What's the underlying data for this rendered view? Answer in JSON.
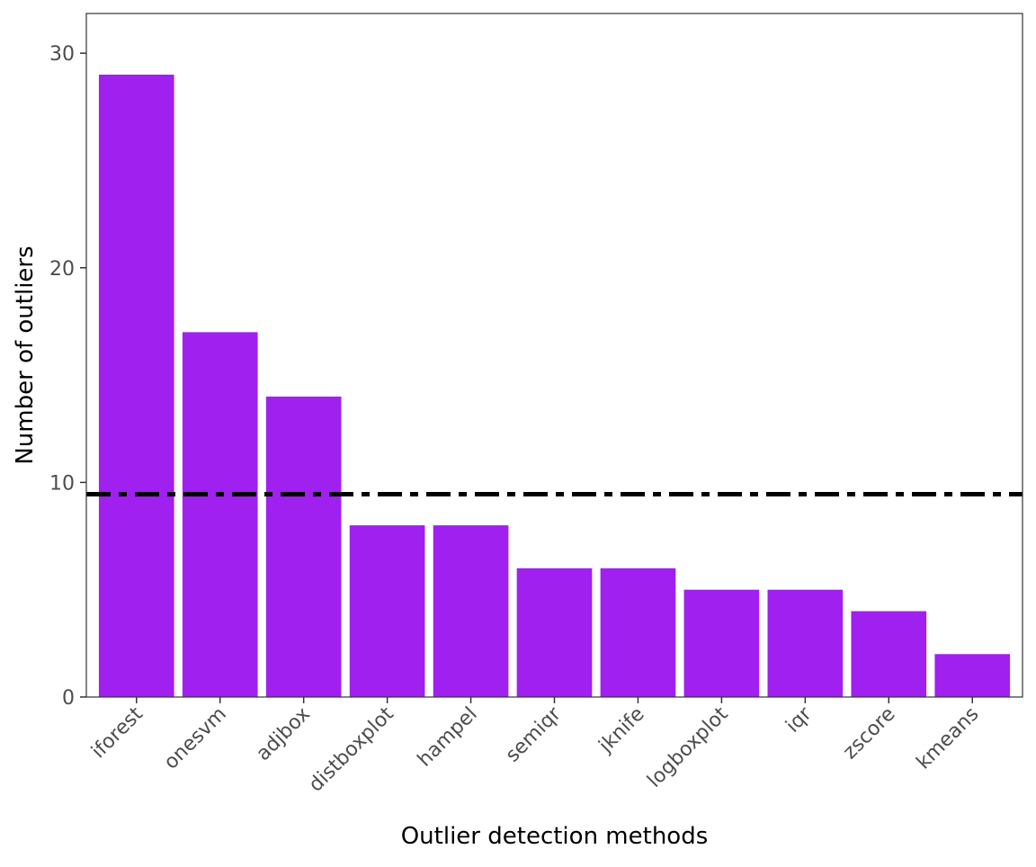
{
  "chart_data": {
    "type": "bar",
    "title": "",
    "xlabel": "Outlier detection methods",
    "ylabel": "Number of outliers",
    "categories": [
      "iforest",
      "onesvm",
      "adjbox",
      "distboxplot",
      "hampel",
      "semiqr",
      "jknife",
      "logboxplot",
      "iqr",
      "zscore",
      "kmeans"
    ],
    "values": [
      29,
      17,
      14,
      8,
      8,
      6,
      6,
      5,
      5,
      4,
      2
    ],
    "ylim": [
      0,
      31.85
    ],
    "yticks": [
      0,
      10,
      20,
      30
    ],
    "reference_line": {
      "value": 9.45,
      "style": "dot-dash",
      "color": "#000000"
    },
    "bar_color": "#a020f0",
    "grid": false,
    "legend": "none"
  }
}
